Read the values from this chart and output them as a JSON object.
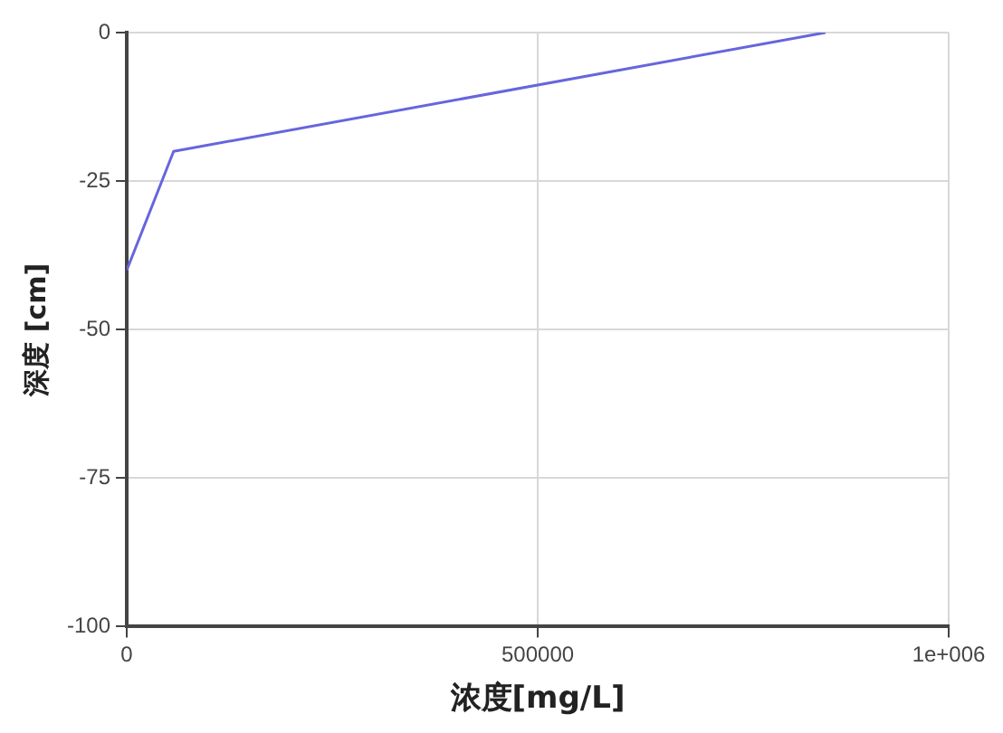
{
  "chart_data": {
    "type": "line",
    "xlabel": "浓度[mg/L]",
    "ylabel": "深度 [cm]",
    "series": [
      {
        "x": [
          0,
          57000,
          850000
        ],
        "values": [
          -40,
          -20,
          0
        ],
        "color": "#6666dd"
      }
    ],
    "xlim": [
      0,
      1000000
    ],
    "xticks": [
      0,
      500000,
      {
        "value": 1000000,
        "label": "1e+006"
      }
    ],
    "ylim": [
      -100,
      0
    ],
    "yticks": [
      -100,
      -75,
      -50,
      -25,
      0
    ],
    "grid": true,
    "marker": "none",
    "line_style": "solid"
  }
}
